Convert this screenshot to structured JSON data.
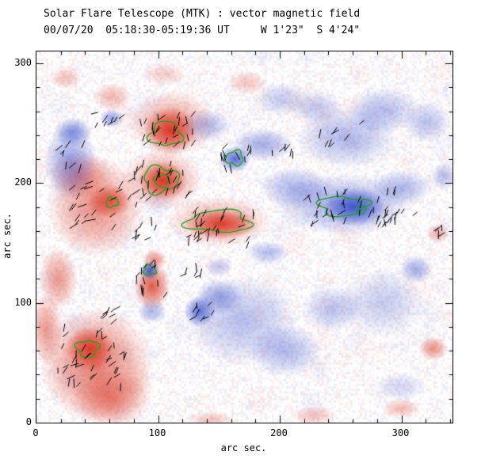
{
  "chart_data": {
    "type": "heatmap",
    "title": "Solar Flare Telescope (MTK) : vector magnetic field",
    "subtitle": "00/07/20  05:18:30-05:19:36 UT     W 1'23\"  S 4'24\"",
    "xlabel": "arc sec.",
    "ylabel": "arc sec.",
    "xlim": [
      0,
      342
    ],
    "ylim": [
      0,
      310
    ],
    "xticks": [
      0,
      100,
      200,
      300
    ],
    "yticks": [
      0,
      100,
      200,
      300
    ],
    "minor_tick_step": 20,
    "grid": false,
    "colors": {
      "positive": "#d8321e",
      "negative": "#2e46c8",
      "contour": "#1ea41e",
      "vector": "#000000",
      "axes": "#000000",
      "background": "#ffffff"
    },
    "blobs_format": "x_arcsec, y_arcsec, rx, ry, amplitude (positive = red polarity, negative = blue polarity)",
    "blobs": [
      [
        110,
        244,
        22,
        20,
        0.95
      ],
      [
        112,
        250,
        36,
        28,
        0.45
      ],
      [
        104,
        202,
        20,
        16,
        0.95
      ],
      [
        103,
        203,
        34,
        26,
        0.45
      ],
      [
        152,
        166,
        30,
        13,
        0.9
      ],
      [
        150,
        168,
        44,
        22,
        0.4
      ],
      [
        49,
        180,
        40,
        42,
        0.55
      ],
      [
        60,
        185,
        18,
        14,
        0.75
      ],
      [
        36,
        207,
        26,
        20,
        0.45
      ],
      [
        49,
        48,
        46,
        48,
        0.65
      ],
      [
        44,
        62,
        20,
        18,
        0.9
      ],
      [
        62,
        20,
        32,
        24,
        0.55
      ],
      [
        95,
        114,
        15,
        20,
        0.8
      ],
      [
        97,
        136,
        10,
        9,
        0.55
      ],
      [
        18,
        120,
        16,
        26,
        0.5
      ],
      [
        8,
        78,
        14,
        30,
        0.5
      ],
      [
        62,
        272,
        16,
        12,
        0.35
      ],
      [
        24,
        288,
        14,
        10,
        0.3
      ],
      [
        105,
        291,
        18,
        10,
        0.25
      ],
      [
        172,
        284,
        16,
        10,
        0.28
      ],
      [
        330,
        158,
        10,
        8,
        0.4
      ],
      [
        326,
        62,
        12,
        10,
        0.55
      ],
      [
        300,
        12,
        16,
        8,
        0.35
      ],
      [
        228,
        6,
        18,
        8,
        0.3
      ],
      [
        143,
        2,
        20,
        8,
        0.3
      ],
      [
        262,
        180,
        26,
        16,
        -0.85
      ],
      [
        252,
        182,
        56,
        26,
        -0.45
      ],
      [
        213,
        196,
        30,
        18,
        -0.4
      ],
      [
        300,
        196,
        26,
        15,
        -0.4
      ],
      [
        163,
        220,
        13,
        11,
        -0.8
      ],
      [
        186,
        232,
        26,
        14,
        -0.45
      ],
      [
        255,
        238,
        42,
        26,
        -0.38
      ],
      [
        286,
        261,
        30,
        20,
        -0.33
      ],
      [
        230,
        263,
        22,
        14,
        -0.3
      ],
      [
        321,
        251,
        20,
        18,
        -0.33
      ],
      [
        28,
        218,
        22,
        32,
        -0.5
      ],
      [
        30,
        243,
        16,
        12,
        -0.55
      ],
      [
        62,
        254,
        10,
        8,
        -0.5
      ],
      [
        93,
        127,
        8,
        8,
        -0.85
      ],
      [
        134,
        93,
        13,
        13,
        -0.75
      ],
      [
        170,
        85,
        46,
        38,
        -0.35
      ],
      [
        150,
        105,
        20,
        15,
        -0.45
      ],
      [
        205,
        60,
        30,
        22,
        -0.38
      ],
      [
        243,
        95,
        26,
        20,
        -0.3
      ],
      [
        285,
        100,
        35,
        28,
        -0.28
      ],
      [
        312,
        128,
        14,
        12,
        -0.45
      ],
      [
        335,
        206,
        10,
        12,
        -0.35
      ],
      [
        190,
        142,
        18,
        10,
        -0.35
      ],
      [
        150,
        130,
        12,
        8,
        -0.3
      ],
      [
        95,
        93,
        12,
        10,
        -0.4
      ],
      [
        300,
        30,
        20,
        12,
        -0.22
      ],
      [
        140,
        248,
        20,
        14,
        -0.35
      ],
      [
        200,
        270,
        20,
        14,
        -0.28
      ]
    ],
    "contours_format": "x_arcsec, y_arcsec, rx, ry (green field-strength contours)",
    "contours": [
      [
        106,
        241,
        13,
        10
      ],
      [
        102,
        203,
        14,
        11
      ],
      [
        103,
        202,
        6,
        5
      ],
      [
        150,
        168,
        26,
        9
      ],
      [
        62,
        184,
        5,
        4
      ],
      [
        42,
        62,
        9,
        7
      ],
      [
        163,
        221,
        7,
        6
      ],
      [
        93,
        127,
        5,
        4
      ],
      [
        252,
        181,
        20,
        8
      ],
      [
        267,
        178,
        4,
        3
      ]
    ],
    "vector_clusters_format": "x_arcsec, y_arcsec, spread_x, spread_y, count, base_angle_deg (black transverse-field vectors)",
    "vector_clusters": [
      [
        108,
        244,
        24,
        16,
        26,
        65
      ],
      [
        103,
        202,
        24,
        16,
        28,
        70
      ],
      [
        152,
        163,
        32,
        15,
        32,
        60
      ],
      [
        55,
        183,
        28,
        20,
        24,
        50
      ],
      [
        163,
        221,
        15,
        11,
        12,
        80
      ],
      [
        258,
        180,
        38,
        15,
        38,
        70
      ],
      [
        300,
        172,
        15,
        9,
        9,
        60
      ],
      [
        95,
        120,
        13,
        15,
        13,
        70
      ],
      [
        134,
        93,
        11,
        9,
        8,
        60
      ],
      [
        45,
        55,
        28,
        26,
        38,
        55
      ],
      [
        60,
        255,
        13,
        8,
        8,
        50
      ],
      [
        28,
        225,
        11,
        13,
        8,
        60
      ],
      [
        250,
        240,
        18,
        11,
        8,
        65
      ],
      [
        205,
        228,
        13,
        9,
        6,
        70
      ],
      [
        88,
        160,
        11,
        9,
        8,
        55
      ],
      [
        128,
        128,
        9,
        7,
        6,
        60
      ],
      [
        332,
        160,
        7,
        5,
        5,
        60
      ],
      [
        62,
        92,
        13,
        9,
        8,
        50
      ]
    ]
  }
}
